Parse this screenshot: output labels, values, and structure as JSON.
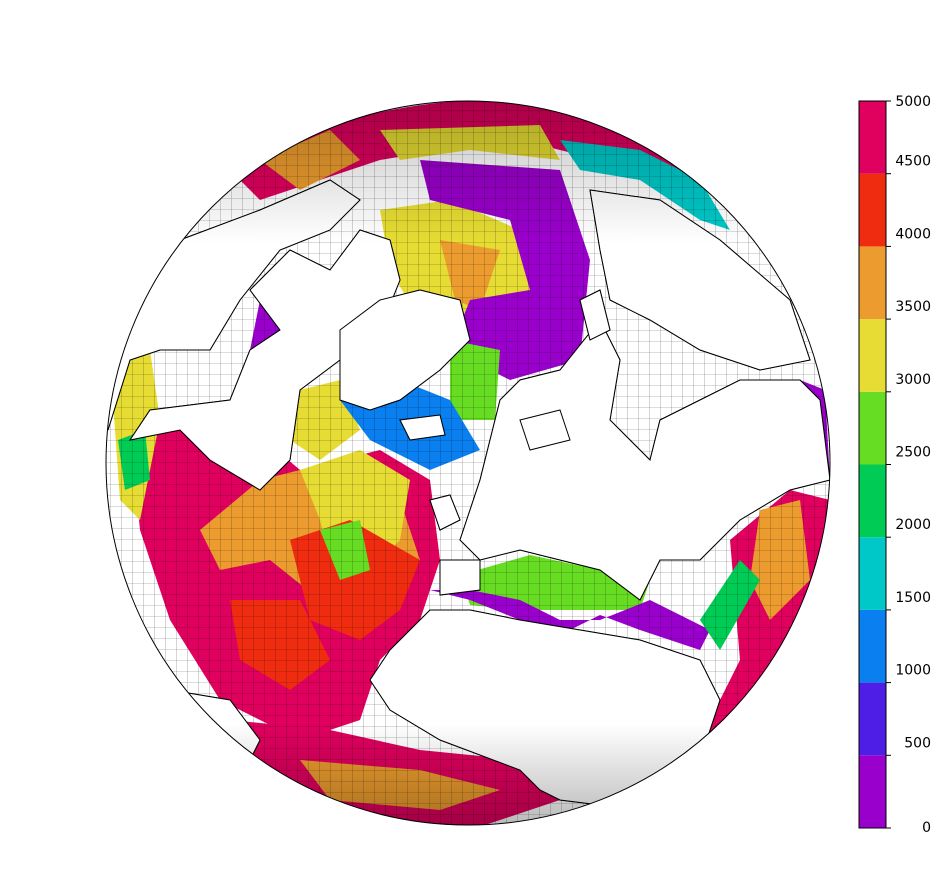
{
  "map": {
    "projection": "orthographic",
    "view": "North Atlantic / Arctic",
    "ocean_depth_colors": [
      "#9a00cc",
      "#4f1ee6",
      "#0a7ff0",
      "#00c8c8",
      "#00cc55",
      "#66dd22",
      "#e6dc33",
      "#ec9c2e",
      "#f02c10",
      "#e0005e"
    ],
    "land_color": "#ffffff",
    "coastline_color": "#000000"
  },
  "colorbar": {
    "ticks": [
      "0",
      "500",
      "1000",
      "1500",
      "2000",
      "2500",
      "3000",
      "3500",
      "4000",
      "4500",
      "5000"
    ],
    "colors": [
      "#9a00cc",
      "#4f1ee6",
      "#0a7ff0",
      "#00c8c8",
      "#00cc55",
      "#66dd22",
      "#e6dc33",
      "#ec9c2e",
      "#f02c10",
      "#e0005e"
    ]
  }
}
